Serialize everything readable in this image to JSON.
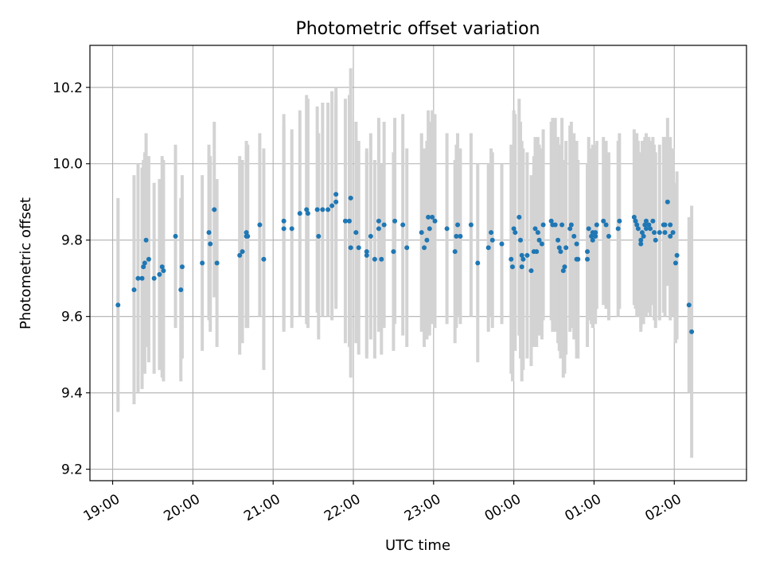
{
  "chart_data": {
    "type": "scatter",
    "title": "Photometric offset variation",
    "xlabel": "UTC time",
    "ylabel": "Photometric offset",
    "grid": true,
    "x_ticks": [
      "19:00",
      "20:00",
      "21:00",
      "22:00",
      "23:00",
      "00:00",
      "01:00",
      "02:00"
    ],
    "y_ticks": [
      "9.2",
      "9.4",
      "9.6",
      "9.8",
      "10.0",
      "10.2"
    ],
    "xlim": [
      "18:43",
      "02:54"
    ],
    "ylim": [
      9.17,
      10.31
    ],
    "colors": {
      "points": "#1f77b4",
      "error_bars": "#d3d3d3",
      "grid": "#b0b0b0"
    },
    "points": [
      [
        "19:04",
        9.63,
        0.28
      ],
      [
        "19:16",
        9.67,
        0.3
      ],
      [
        "19:19",
        9.7,
        0.3
      ],
      [
        "19:22",
        9.7,
        0.29
      ],
      [
        "19:23",
        9.73,
        0.28
      ],
      [
        "19:24",
        9.74,
        0.29
      ],
      [
        "19:25",
        9.8,
        0.28
      ],
      [
        "19:27",
        9.75,
        0.27
      ],
      [
        "19:31",
        9.7,
        0.25
      ],
      [
        "19:35",
        9.71,
        0.25
      ],
      [
        "19:37",
        9.73,
        0.29
      ],
      [
        "19:38",
        9.72,
        0.29
      ],
      [
        "19:47",
        9.81,
        0.24
      ],
      [
        "19:51",
        9.67,
        0.24
      ],
      [
        "19:52",
        9.73,
        0.24
      ],
      [
        "20:07",
        9.74,
        0.23
      ],
      [
        "20:12",
        9.82,
        0.23
      ],
      [
        "20:13",
        9.79,
        0.23
      ],
      [
        "20:16",
        9.88,
        0.23
      ],
      [
        "20:18",
        9.74,
        0.22
      ],
      [
        "20:35",
        9.76,
        0.26
      ],
      [
        "20:37",
        9.77,
        0.24
      ],
      [
        "20:40",
        9.82,
        0.24
      ],
      [
        "20:40",
        9.81,
        0.24
      ],
      [
        "20:41",
        9.81,
        0.24
      ],
      [
        "20:50",
        9.84,
        0.24
      ],
      [
        "20:53",
        9.75,
        0.29
      ],
      [
        "21:08",
        9.85,
        0.28
      ],
      [
        "21:08",
        9.83,
        0.27
      ],
      [
        "21:14",
        9.83,
        0.26
      ],
      [
        "21:20",
        9.87,
        0.27
      ],
      [
        "21:25",
        9.88,
        0.3
      ],
      [
        "21:26",
        9.87,
        0.3
      ],
      [
        "21:33",
        9.88,
        0.27
      ],
      [
        "21:34",
        9.81,
        0.27
      ],
      [
        "21:37",
        9.88,
        0.28
      ],
      [
        "21:41",
        9.88,
        0.28
      ],
      [
        "21:44",
        9.89,
        0.3
      ],
      [
        "21:47",
        9.92,
        0.28
      ],
      [
        "21:47",
        9.9,
        0.28
      ],
      [
        "21:54",
        9.85,
        0.32
      ],
      [
        "21:57",
        9.85,
        0.33
      ],
      [
        "21:58",
        9.91,
        0.34
      ],
      [
        "21:58",
        9.78,
        0.34
      ],
      [
        "22:02",
        9.82,
        0.29
      ],
      [
        "22:04",
        9.78,
        0.28
      ],
      [
        "22:10",
        9.77,
        0.27
      ],
      [
        "22:10",
        9.76,
        0.27
      ],
      [
        "22:13",
        9.81,
        0.27
      ],
      [
        "22:16",
        9.75,
        0.26
      ],
      [
        "22:19",
        9.83,
        0.27
      ],
      [
        "22:19",
        9.85,
        0.27
      ],
      [
        "22:21",
        9.75,
        0.25
      ],
      [
        "22:23",
        9.84,
        0.27
      ],
      [
        "22:30",
        9.77,
        0.26
      ],
      [
        "22:31",
        9.85,
        0.27
      ],
      [
        "22:37",
        9.84,
        0.29
      ],
      [
        "22:40",
        9.78,
        0.26
      ],
      [
        "22:51",
        9.82,
        0.26
      ],
      [
        "22:53",
        9.78,
        0.26
      ],
      [
        "22:55",
        9.8,
        0.26
      ],
      [
        "22:56",
        9.86,
        0.28
      ],
      [
        "22:57",
        9.83,
        0.28
      ],
      [
        "22:59",
        9.86,
        0.28
      ],
      [
        "23:01",
        9.85,
        0.28
      ],
      [
        "23:10",
        9.83,
        0.25
      ],
      [
        "23:16",
        9.77,
        0.24
      ],
      [
        "23:17",
        9.81,
        0.24
      ],
      [
        "23:18",
        9.84,
        0.24
      ],
      [
        "23:20",
        9.81,
        0.23
      ],
      [
        "23:28",
        9.84,
        0.24
      ],
      [
        "23:33",
        9.74,
        0.26
      ],
      [
        "23:41",
        9.78,
        0.22
      ],
      [
        "23:43",
        9.82,
        0.22
      ],
      [
        "23:44",
        9.8,
        0.23
      ],
      [
        "23:51",
        9.79,
        0.21
      ],
      [
        "23:58",
        9.75,
        0.3
      ],
      [
        "23:59",
        9.73,
        0.3
      ],
      [
        "00:00",
        9.83,
        0.31
      ],
      [
        "00:01",
        9.82,
        0.31
      ],
      [
        "00:04",
        9.86,
        0.31
      ],
      [
        "00:05",
        9.8,
        0.31
      ],
      [
        "00:06",
        9.73,
        0.3
      ],
      [
        "00:06",
        9.76,
        0.3
      ],
      [
        "00:07",
        9.75,
        0.29
      ],
      [
        "00:10",
        9.76,
        0.27
      ],
      [
        "00:13",
        9.72,
        0.25
      ],
      [
        "00:15",
        9.77,
        0.25
      ],
      [
        "00:16",
        9.83,
        0.24
      ],
      [
        "00:17",
        9.77,
        0.25
      ],
      [
        "00:18",
        9.82,
        0.25
      ],
      [
        "00:19",
        9.8,
        0.25
      ],
      [
        "00:21",
        9.79,
        0.25
      ],
      [
        "00:22",
        9.84,
        0.25
      ],
      [
        "00:28",
        9.85,
        0.26
      ],
      [
        "00:29",
        9.84,
        0.28
      ],
      [
        "00:31",
        9.84,
        0.28
      ],
      [
        "00:33",
        9.8,
        0.27
      ],
      [
        "00:34",
        9.78,
        0.27
      ],
      [
        "00:35",
        9.77,
        0.28
      ],
      [
        "00:36",
        9.84,
        0.28
      ],
      [
        "00:37",
        9.72,
        0.28
      ],
      [
        "00:38",
        9.73,
        0.28
      ],
      [
        "00:39",
        9.78,
        0.28
      ],
      [
        "00:42",
        9.83,
        0.27
      ],
      [
        "00:43",
        9.84,
        0.27
      ],
      [
        "00:45",
        9.81,
        0.27
      ],
      [
        "00:47",
        9.79,
        0.27
      ],
      [
        "00:47",
        9.75,
        0.26
      ],
      [
        "00:48",
        9.75,
        0.26
      ],
      [
        "00:55",
        9.77,
        0.23
      ],
      [
        "00:55",
        9.75,
        0.23
      ],
      [
        "00:56",
        9.83,
        0.24
      ],
      [
        "00:58",
        9.81,
        0.23
      ],
      [
        "00:59",
        9.82,
        0.23
      ],
      [
        "00:59",
        9.8,
        0.23
      ],
      [
        "01:01",
        9.81,
        0.23
      ],
      [
        "01:01",
        9.82,
        0.23
      ],
      [
        "01:02",
        9.84,
        0.22
      ],
      [
        "01:07",
        9.85,
        0.22
      ],
      [
        "01:09",
        9.84,
        0.22
      ],
      [
        "01:11",
        9.81,
        0.22
      ],
      [
        "01:18",
        9.83,
        0.23
      ],
      [
        "01:19",
        9.85,
        0.23
      ],
      [
        "01:30",
        9.86,
        0.23
      ],
      [
        "01:31",
        9.85,
        0.23
      ],
      [
        "01:32",
        9.84,
        0.24
      ],
      [
        "01:33",
        9.83,
        0.23
      ],
      [
        "01:35",
        9.8,
        0.23
      ],
      [
        "01:35",
        9.79,
        0.23
      ],
      [
        "01:36",
        9.82,
        0.24
      ],
      [
        "01:37",
        9.81,
        0.23
      ],
      [
        "01:38",
        9.84,
        0.23
      ],
      [
        "01:39",
        9.83,
        0.23
      ],
      [
        "01:39",
        9.85,
        0.23
      ],
      [
        "01:41",
        9.84,
        0.23
      ],
      [
        "01:42",
        9.83,
        0.23
      ],
      [
        "01:44",
        9.85,
        0.22
      ],
      [
        "01:45",
        9.82,
        0.23
      ],
      [
        "01:46",
        9.8,
        0.23
      ],
      [
        "01:49",
        9.82,
        0.23
      ],
      [
        "01:52",
        9.84,
        0.23
      ],
      [
        "01:53",
        9.82,
        0.22
      ],
      [
        "01:53",
        9.84,
        0.23
      ],
      [
        "01:55",
        9.9,
        0.22
      ],
      [
        "01:57",
        9.81,
        0.22
      ],
      [
        "01:57",
        9.84,
        0.23
      ],
      [
        "01:59",
        9.82,
        0.22
      ],
      [
        "02:01",
        9.74,
        0.21
      ],
      [
        "02:02",
        9.76,
        0.22
      ],
      [
        "02:11",
        9.63,
        0.23
      ],
      [
        "02:13",
        9.56,
        0.33
      ]
    ]
  }
}
